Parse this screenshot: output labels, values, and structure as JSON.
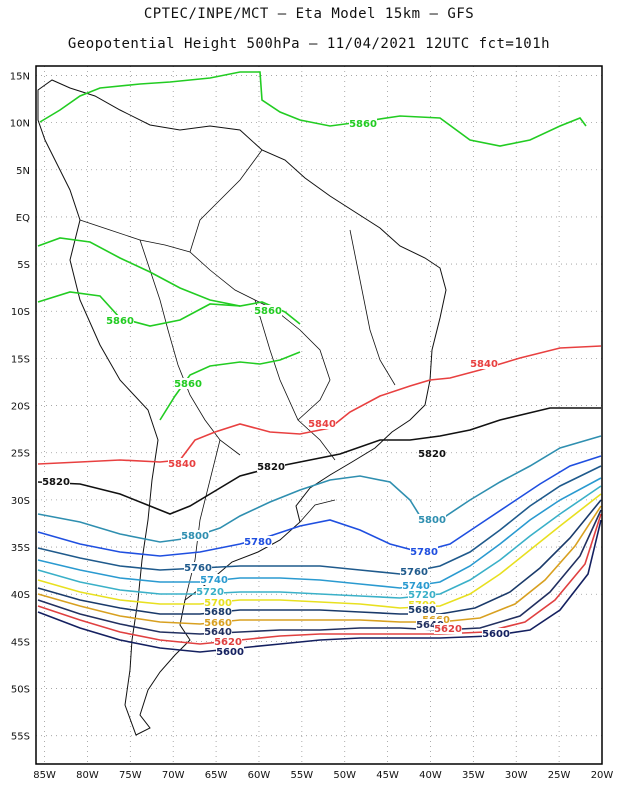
{
  "header": {
    "line1": "CPTEC/INPE/MCT –  Eta Model 15km – GFS",
    "line2": "Geopotential Height 500hPa – 11/04/2021 12UTC fct=101h"
  },
  "map": {
    "lat_labels": [
      "15N",
      "10N",
      "5N",
      "EQ",
      "5S",
      "10S",
      "15S",
      "20S",
      "25S",
      "30S",
      "35S",
      "40S",
      "45S",
      "50S",
      "55S"
    ],
    "lon_labels": [
      "85W",
      "80W",
      "75W",
      "70W",
      "65W",
      "60W",
      "55W",
      "50W",
      "45W",
      "40W",
      "35W",
      "30W",
      "25W",
      "20W"
    ],
    "lat_range": [
      -58,
      16
    ],
    "lon_range": [
      -86,
      -20
    ],
    "grid": true
  },
  "contours": [
    {
      "value": "5860",
      "color": "#22cc22"
    },
    {
      "value": "5840",
      "color": "#e84040"
    },
    {
      "value": "5820",
      "color": "#111111"
    },
    {
      "value": "5800",
      "color": "#2f8fb0"
    },
    {
      "value": "5780",
      "color": "#1f4fe0"
    },
    {
      "value": "5760",
      "color": "#1f5a8c"
    },
    {
      "value": "5740",
      "color": "#2a9ad0"
    },
    {
      "value": "5720",
      "color": "#3ab0c8"
    },
    {
      "value": "5700",
      "color": "#e8e020"
    },
    {
      "value": "5680",
      "color": "#1a3a6a"
    },
    {
      "value": "5660",
      "color": "#d8a020"
    },
    {
      "value": "5640",
      "color": "#223060"
    },
    {
      "value": "5620",
      "color": "#e04040"
    },
    {
      "value": "5600",
      "color": "#142060"
    }
  ]
}
